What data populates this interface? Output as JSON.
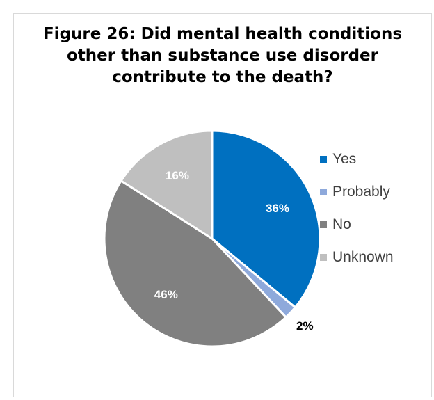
{
  "title_lines": [
    "Figure 26: Did mental health conditions",
    "other than substance use disorder",
    "contribute to the death?"
  ],
  "chart_data": {
    "type": "pie",
    "title": "Figure 26: Did mental health conditions other than substance use disorder contribute to the death?",
    "categories": [
      "Yes",
      "Probably",
      "No",
      "Unknown"
    ],
    "values": [
      36,
      2,
      46,
      16
    ],
    "data_labels": [
      "36%",
      "2%",
      "46%",
      "16%"
    ],
    "colors": [
      "#0070C0",
      "#8EA9DB",
      "#808080",
      "#BFBFBF"
    ],
    "label_colors": [
      "#ffffff",
      "#000000",
      "#ffffff",
      "#ffffff"
    ],
    "legend_position": "right"
  }
}
